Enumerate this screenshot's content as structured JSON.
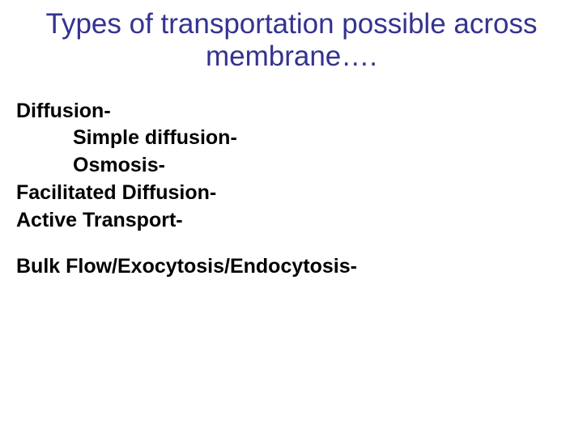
{
  "slide": {
    "title_color": "#333391",
    "title": "Types of transportation possible across membrane….",
    "items": {
      "diffusion": "Diffusion-",
      "simple": "Simple diffusion-",
      "osmosis": "Osmosis-",
      "facilitated": "Facilitated Diffusion-",
      "active": "Active Transport-",
      "bulk": "Bulk Flow/Exocytosis/Endocytosis-"
    }
  }
}
